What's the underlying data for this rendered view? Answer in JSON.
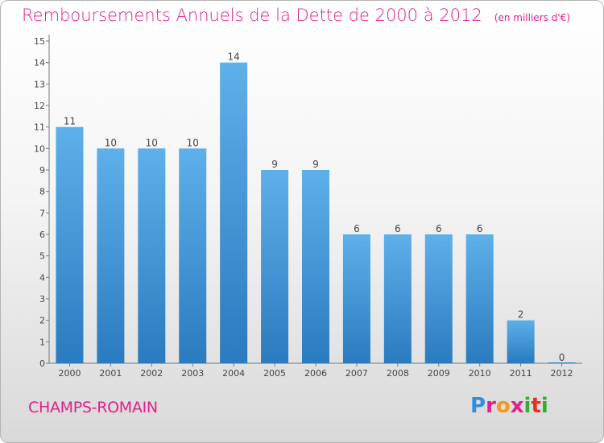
{
  "title": "Remboursements Annuels de la Dette de 2000 à 2012",
  "unit_note": "(en milliers d'€)",
  "commune": "CHAMPS-ROMAIN",
  "logo_text": "Proxiti",
  "colors": {
    "title": "#e0218a",
    "bar_top": "#5eb0ea",
    "bar_bottom": "#2a7bbf"
  },
  "chart_data": {
    "type": "bar",
    "title": "Remboursements Annuels de la Dette de 2000 à 2012",
    "xlabel": "",
    "ylabel": "",
    "categories": [
      "2000",
      "2001",
      "2002",
      "2003",
      "2004",
      "2005",
      "2006",
      "2007",
      "2008",
      "2009",
      "2010",
      "2011",
      "2012"
    ],
    "values": [
      11,
      10,
      10,
      10,
      14,
      9,
      9,
      6,
      6,
      6,
      6,
      2,
      0
    ],
    "ylim": [
      0,
      15
    ],
    "yticks": [
      0,
      1,
      2,
      3,
      4,
      5,
      6,
      7,
      8,
      9,
      10,
      11,
      12,
      13,
      14,
      15
    ],
    "grid": false,
    "data_labels": true
  }
}
